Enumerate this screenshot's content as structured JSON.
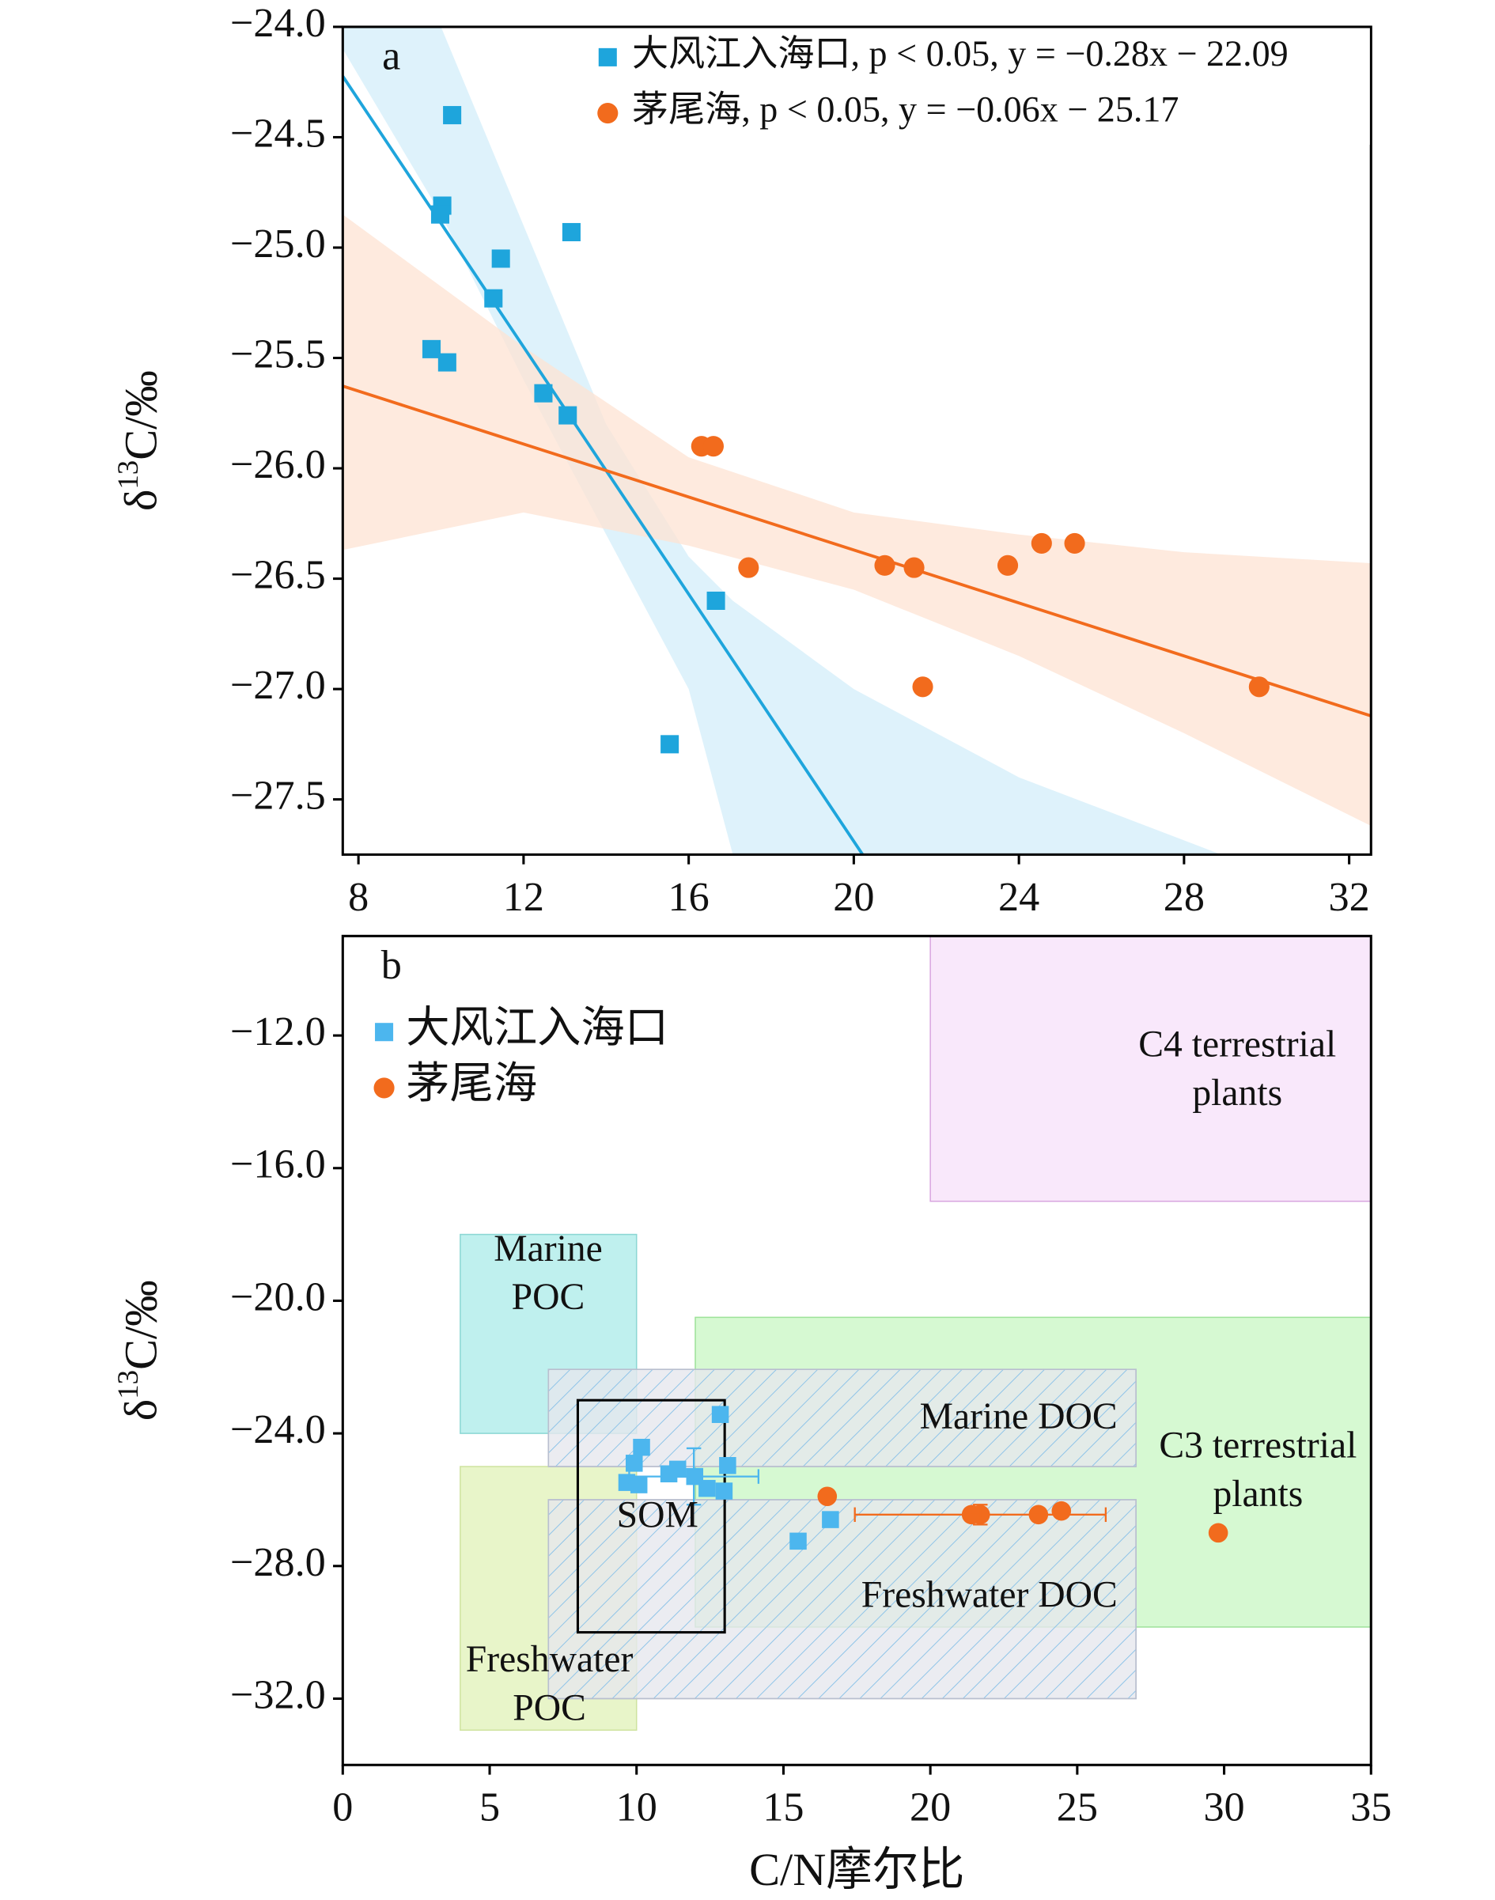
{
  "chart_data": [
    {
      "type": "scatter",
      "panel_label": "a",
      "y_label": {
        "prefix": "δ",
        "sup": "13",
        "suffix": "C/‰"
      },
      "xlim": [
        7.62,
        32.53
      ],
      "xticks": [
        8,
        12,
        16,
        20,
        24,
        28,
        32
      ],
      "ylim": [
        -27.75,
        -24.0
      ],
      "yticks": [
        {
          "value": -24.0,
          "label": "−24.0"
        },
        {
          "value": -24.5,
          "label": "−24.5"
        },
        {
          "value": -25.0,
          "label": "−25.0"
        },
        {
          "value": -25.5,
          "label": "−25.5"
        },
        {
          "value": -26.0,
          "label": "−26.0"
        },
        {
          "value": -26.5,
          "label": "−26.5"
        },
        {
          "value": -27.0,
          "label": "−27.0"
        },
        {
          "value": -27.5,
          "label": "−27.5"
        }
      ],
      "series": [
        {
          "name": "大风江入海口, p < 0.05, y = −0.28x − 22.09",
          "color": "#1ea5dc",
          "band_color": "#d3eef9",
          "marker": "square",
          "x": [
            10.27,
            10.03,
            9.98,
            13.16,
            11.45,
            11.27,
            9.77,
            10.15,
            12.48,
            13.07,
            16.66,
            15.54
          ],
          "y": [
            -24.4,
            -24.81,
            -24.85,
            -24.93,
            -25.05,
            -25.23,
            -25.46,
            -25.52,
            -25.66,
            -25.76,
            -26.6,
            -27.25
          ],
          "fit": {
            "slope": -0.28,
            "intercept": -22.09
          },
          "ci_band": {
            "x": [
              7.62,
              10,
              12,
              14,
              16,
              17.07,
              20,
              24,
              28.9,
              32.53
            ],
            "upper": [
              -23.0,
              -24.0,
              -24.9,
              -25.8,
              -26.4,
              -26.6,
              -27.0,
              -27.4,
              -27.75,
              -28.2
            ],
            "lower": [
              -24.1,
              -24.85,
              -25.6,
              -26.3,
              -27.0,
              -27.75,
              -29.0,
              -30.0,
              -31.0,
              -32.0
            ]
          }
        },
        {
          "name": "茅尾海, p < 0.05, y = −0.06x − 25.17",
          "color": "#f26b1d",
          "band_color": "#fde3d3",
          "marker": "circle",
          "x": [
            16.31,
            16.6,
            17.45,
            20.75,
            21.46,
            21.67,
            23.73,
            24.55,
            25.35,
            29.82
          ],
          "y": [
            -25.9,
            -25.9,
            -26.45,
            -26.44,
            -26.45,
            -26.99,
            -26.44,
            -26.34,
            -26.34,
            -26.99
          ],
          "fit": {
            "slope": -0.06,
            "intercept": -25.17
          },
          "ci_band": {
            "x": [
              7.62,
              12,
              16,
              20,
              24,
              28,
              32.53
            ],
            "upper": [
              -24.85,
              -25.45,
              -25.95,
              -26.2,
              -26.3,
              -26.38,
              -26.43
            ],
            "lower": [
              -26.37,
              -26.2,
              -26.35,
              -26.55,
              -26.85,
              -27.2,
              -27.62
            ]
          }
        }
      ]
    },
    {
      "type": "scatter",
      "panel_label": "b",
      "x_label": "C/N摩尔比",
      "y_label": {
        "prefix": "δ",
        "sup": "13",
        "suffix": "C/‰"
      },
      "xlim": [
        0,
        35
      ],
      "xticks": [
        0,
        5,
        10,
        15,
        20,
        25,
        30,
        35
      ],
      "ylim": [
        -34.0,
        -9.0
      ],
      "yticks": [
        {
          "value": -12,
          "label": "−12.0"
        },
        {
          "value": -16,
          "label": "−16.0"
        },
        {
          "value": -20,
          "label": "−20.0"
        },
        {
          "value": -24,
          "label": "−24.0"
        },
        {
          "value": -28,
          "label": "−28.0"
        },
        {
          "value": -32,
          "label": "−32.0"
        }
      ],
      "regions": [
        {
          "label": [
            "C4 terrestrial",
            "plants"
          ],
          "x": [
            20,
            35
          ],
          "y": [
            -17.0,
            -9.0
          ],
          "color": "#f9e8fb",
          "stroke": "#d9a6e0",
          "hatched": false
        },
        {
          "label": [
            "C3 terrestrial",
            "plants"
          ],
          "x": [
            12,
            35
          ],
          "y": [
            -29.84,
            -20.5
          ],
          "color": "#d6f9d2",
          "stroke": "#9ee29a",
          "hatched": false
        },
        {
          "label": [
            "Marine",
            "POC"
          ],
          "x": [
            4,
            10
          ],
          "y": [
            -24.0,
            -18.0
          ],
          "color": "#bff0ee",
          "stroke": "#8cd7d4",
          "hatched": false
        },
        {
          "label": [
            "Freshwater",
            "POC"
          ],
          "x": [
            4,
            10
          ],
          "y": [
            -32.95,
            -25.0
          ],
          "color": "#e8f5c9",
          "stroke": "#cfe3a0",
          "hatched": false
        },
        {
          "label": [
            "Marine DOC"
          ],
          "x": [
            7,
            27
          ],
          "y": [
            -25.0,
            -22.07
          ],
          "color": "#e6e7ee",
          "stroke": "#b9bfcf",
          "hatched": true
        },
        {
          "label": [
            "Freshwater DOC"
          ],
          "x": [
            7,
            27
          ],
          "y": [
            -32.0,
            -26.0
          ],
          "color": "#e6e7ee",
          "stroke": "#b9bfcf",
          "hatched": true
        },
        {
          "label": [
            "SOM"
          ],
          "x": [
            8,
            13
          ],
          "y": [
            -30.0,
            -23.0
          ],
          "color": "none",
          "stroke": "#000000",
          "hatched": false
        }
      ],
      "series": [
        {
          "name": "大风江入海口",
          "color": "#4cb6ee",
          "marker": "square",
          "x": [
            12.85,
            13.1,
            9.92,
            10.17,
            9.67,
            10.08,
            11.1,
            11.4,
            11.98,
            12.4,
            12.98,
            15.5,
            16.6
          ],
          "y": [
            -23.43,
            -24.97,
            -24.9,
            -24.42,
            -25.48,
            -25.55,
            -25.22,
            -25.08,
            -25.3,
            -25.66,
            -25.74,
            -27.25,
            -26.6
          ],
          "errorbar": {
            "x": 11.95,
            "y": -25.3,
            "xerr": 2.2,
            "yerr": 0.85
          }
        },
        {
          "name": "茅尾海",
          "color": "#f26b1d",
          "marker": "circle",
          "x": [
            16.49,
            21.4,
            21.7,
            23.68,
            24.46,
            29.8
          ],
          "y": [
            -25.9,
            -26.45,
            -26.45,
            -26.45,
            -26.34,
            -27.0
          ],
          "errorbar": {
            "x": 21.7,
            "y": -26.45,
            "xerr": 4.27,
            "yerr": 0.3
          }
        }
      ]
    }
  ]
}
